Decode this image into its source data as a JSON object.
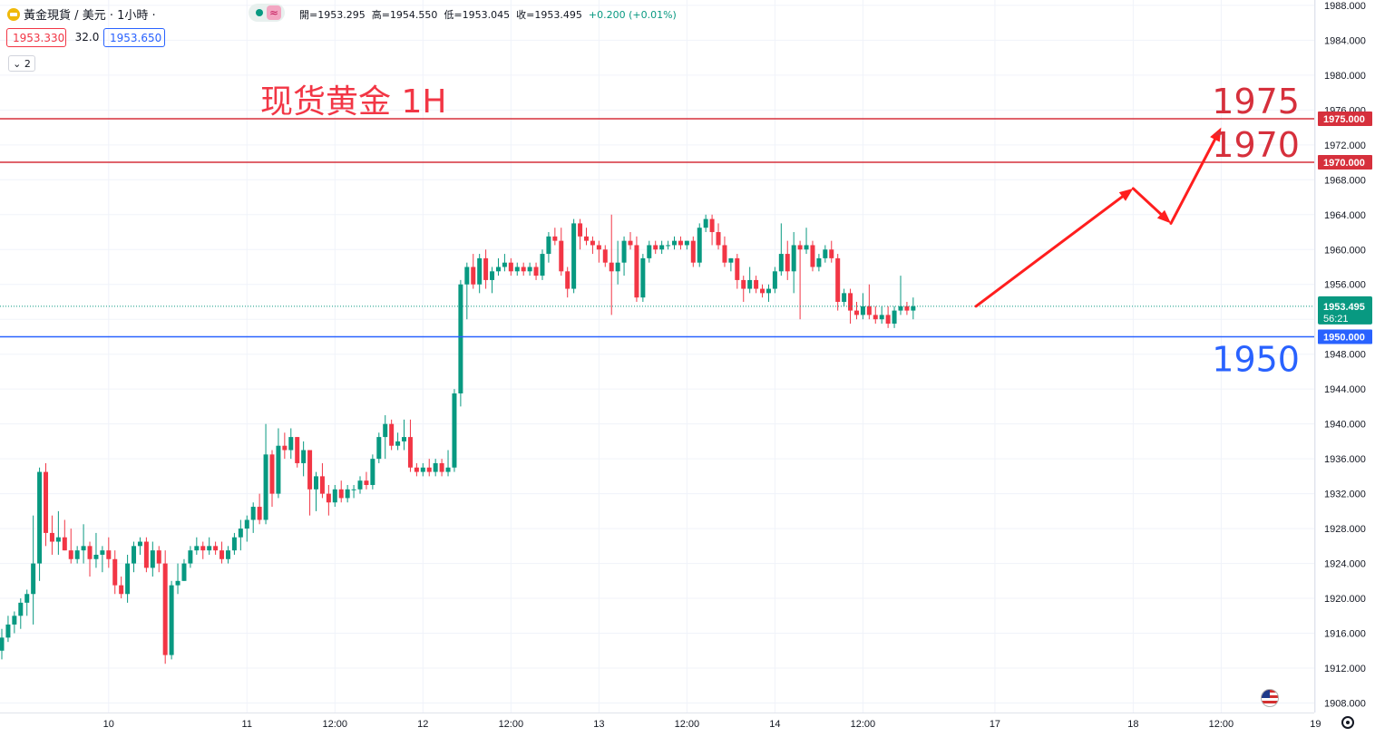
{
  "header": {
    "symbol": "黃金現貨",
    "separator": "/",
    "currency_interval": "美元 · 1小時 ·",
    "approx_icon": "≈",
    "ohlc": {
      "open_label": "開=",
      "open": "1953.295",
      "high_label": "高=",
      "high": "1954.550",
      "low_label": "低=",
      "low": "1953.045",
      "close_label": "收=",
      "close": "1953.495",
      "change": "+0.200 (+0.01%)"
    },
    "bid": "1953.330",
    "spread": "32.0",
    "ask": "1953.650",
    "indicators_count": "2"
  },
  "annotation_title": "现货黄金 1H",
  "icons": {
    "symbol": "gold-coin-icon",
    "collapse": "chevron-down-icon",
    "events": "us-flag-icon",
    "settings": "gear-icon"
  },
  "colors": {
    "up": "#089981",
    "down": "#f23645",
    "resistance": "#d6303c",
    "support": "#2962ff",
    "arrow": "#ff1e1e"
  },
  "chart_data": {
    "type": "candlestick",
    "title": "现货黄金 1H",
    "ylim": [
      1906,
      1990
    ],
    "y_ticks": [
      1908,
      1912,
      1916,
      1920,
      1924,
      1928,
      1932,
      1936,
      1940,
      1944,
      1948,
      1952,
      1956,
      1960,
      1964,
      1968,
      1972,
      1976,
      1980,
      1984,
      1988
    ],
    "y_tick_labels": [
      "1908.000",
      "1912.000",
      "1916.000",
      "1920.000",
      "1924.000",
      "1928.000",
      "1932.000",
      "1936.000",
      "1940.000",
      "1944.000",
      "1948.000",
      "1952.000",
      "1956.000",
      "1960.000",
      "1964.000",
      "1968.000",
      "1972.000",
      "1976.000",
      "1980.000",
      "1984.000",
      "1988.000"
    ],
    "x_ticks": [
      {
        "label": "10",
        "bar": 17
      },
      {
        "label": "11",
        "bar": 39
      },
      {
        "label": "12:00",
        "bar": 53
      },
      {
        "label": "12",
        "bar": 67
      },
      {
        "label": "12:00",
        "bar": 81
      },
      {
        "label": "13",
        "bar": 95
      },
      {
        "label": "12:00",
        "bar": 109
      },
      {
        "label": "14",
        "bar": 123
      },
      {
        "label": "12:00",
        "bar": 137
      },
      {
        "label": "17",
        "bar": 158
      },
      {
        "label": "18",
        "bar": 180
      },
      {
        "label": "12:00",
        "bar": 194
      },
      {
        "label": "19",
        "bar": 209
      }
    ],
    "candles": [
      [
        1914.0,
        1916.5,
        1913.0,
        1915.5
      ],
      [
        1915.5,
        1918.0,
        1915.0,
        1917.0
      ],
      [
        1917.0,
        1918.5,
        1916.0,
        1918.0
      ],
      [
        1918.0,
        1920.0,
        1916.5,
        1919.5
      ],
      [
        1919.5,
        1921.0,
        1918.0,
        1920.5
      ],
      [
        1920.5,
        1929.5,
        1917.0,
        1924.0
      ],
      [
        1924.0,
        1935.0,
        1922.0,
        1934.5
      ],
      [
        1934.5,
        1935.5,
        1926.0,
        1927.5
      ],
      [
        1927.5,
        1929.5,
        1925.0,
        1926.5
      ],
      [
        1926.5,
        1930.0,
        1925.0,
        1927.0
      ],
      [
        1927.0,
        1929.0,
        1925.5,
        1925.5
      ],
      [
        1925.5,
        1928.0,
        1924.0,
        1924.5
      ],
      [
        1924.5,
        1926.0,
        1924.0,
        1925.5
      ],
      [
        1925.5,
        1928.5,
        1924.0,
        1926.0
      ],
      [
        1926.0,
        1926.5,
        1922.5,
        1924.5
      ],
      [
        1924.5,
        1927.5,
        1923.5,
        1925.0
      ],
      [
        1925.0,
        1926.0,
        1923.0,
        1925.5
      ],
      [
        1925.5,
        1927.0,
        1923.5,
        1924.5
      ],
      [
        1924.5,
        1925.5,
        1920.5,
        1921.5
      ],
      [
        1921.5,
        1922.5,
        1920.0,
        1920.5
      ],
      [
        1920.5,
        1925.0,
        1919.5,
        1924.0
      ],
      [
        1924.0,
        1926.5,
        1923.0,
        1926.0
      ],
      [
        1926.0,
        1927.0,
        1925.0,
        1926.5
      ],
      [
        1926.5,
        1927.0,
        1923.0,
        1923.5
      ],
      [
        1923.5,
        1926.5,
        1922.5,
        1925.5
      ],
      [
        1925.5,
        1926.0,
        1923.0,
        1924.0
      ],
      [
        1924.0,
        1925.5,
        1912.5,
        1913.5
      ],
      [
        1913.5,
        1922.0,
        1913.0,
        1921.5
      ],
      [
        1921.5,
        1924.0,
        1920.5,
        1922.0
      ],
      [
        1922.0,
        1924.5,
        1922.0,
        1924.0
      ],
      [
        1924.0,
        1926.0,
        1923.5,
        1925.5
      ],
      [
        1925.5,
        1927.0,
        1925.0,
        1926.0
      ],
      [
        1926.0,
        1926.5,
        1924.5,
        1925.5
      ],
      [
        1925.5,
        1927.0,
        1925.0,
        1926.0
      ],
      [
        1926.0,
        1926.5,
        1925.0,
        1925.5
      ],
      [
        1925.5,
        1926.5,
        1924.0,
        1924.5
      ],
      [
        1924.5,
        1926.0,
        1924.0,
        1925.5
      ],
      [
        1925.5,
        1927.5,
        1925.0,
        1927.0
      ],
      [
        1927.0,
        1929.0,
        1925.5,
        1928.0
      ],
      [
        1928.0,
        1929.5,
        1926.5,
        1929.0
      ],
      [
        1929.0,
        1931.0,
        1927.5,
        1930.5
      ],
      [
        1930.5,
        1932.0,
        1928.5,
        1929.0
      ],
      [
        1929.0,
        1940.0,
        1928.5,
        1936.5
      ],
      [
        1936.5,
        1937.0,
        1930.5,
        1932.0
      ],
      [
        1932.0,
        1939.5,
        1931.5,
        1937.5
      ],
      [
        1937.5,
        1939.0,
        1936.0,
        1937.0
      ],
      [
        1937.0,
        1939.5,
        1936.0,
        1938.5
      ],
      [
        1938.5,
        1938.5,
        1935.0,
        1935.5
      ],
      [
        1935.5,
        1938.0,
        1934.0,
        1937.0
      ],
      [
        1937.0,
        1937.0,
        1929.5,
        1932.5
      ],
      [
        1932.5,
        1934.5,
        1930.0,
        1934.0
      ],
      [
        1934.0,
        1935.5,
        1931.5,
        1932.0
      ],
      [
        1932.0,
        1933.0,
        1929.5,
        1931.0
      ],
      [
        1931.0,
        1933.0,
        1930.5,
        1932.5
      ],
      [
        1932.5,
        1933.5,
        1931.0,
        1931.5
      ],
      [
        1931.5,
        1933.0,
        1931.0,
        1932.5
      ],
      [
        1932.5,
        1933.0,
        1931.5,
        1932.5
      ],
      [
        1932.5,
        1934.0,
        1932.0,
        1933.5
      ],
      [
        1933.5,
        1934.5,
        1932.5,
        1933.0
      ],
      [
        1933.0,
        1936.5,
        1932.5,
        1936.0
      ],
      [
        1936.0,
        1939.0,
        1935.5,
        1938.5
      ],
      [
        1938.5,
        1941.0,
        1936.0,
        1940.0
      ],
      [
        1940.0,
        1940.5,
        1937.0,
        1937.5
      ],
      [
        1937.5,
        1939.0,
        1937.0,
        1938.0
      ],
      [
        1938.0,
        1940.5,
        1937.0,
        1938.5
      ],
      [
        1938.5,
        1940.5,
        1934.5,
        1935.0
      ],
      [
        1935.0,
        1935.5,
        1934.0,
        1934.5
      ],
      [
        1934.5,
        1935.5,
        1934.0,
        1935.0
      ],
      [
        1935.0,
        1936.0,
        1934.0,
        1934.5
      ],
      [
        1934.5,
        1936.0,
        1934.0,
        1935.5
      ],
      [
        1935.5,
        1936.0,
        1934.0,
        1934.5
      ],
      [
        1934.5,
        1937.0,
        1934.0,
        1935.0
      ],
      [
        1935.0,
        1944.0,
        1934.5,
        1943.5
      ],
      [
        1943.5,
        1956.5,
        1942.0,
        1956.0
      ],
      [
        1956.0,
        1958.5,
        1952.0,
        1958.0
      ],
      [
        1958.0,
        1959.5,
        1955.5,
        1956.0
      ],
      [
        1956.0,
        1959.5,
        1955.0,
        1959.0
      ],
      [
        1959.0,
        1960.0,
        1955.5,
        1956.5
      ],
      [
        1956.5,
        1958.0,
        1955.0,
        1957.5
      ],
      [
        1957.5,
        1959.0,
        1957.0,
        1958.0
      ],
      [
        1958.0,
        1959.5,
        1957.5,
        1958.5
      ],
      [
        1958.5,
        1959.0,
        1957.0,
        1957.5
      ],
      [
        1957.5,
        1958.5,
        1957.0,
        1958.0
      ],
      [
        1958.0,
        1958.5,
        1957.0,
        1957.5
      ],
      [
        1957.5,
        1958.5,
        1957.0,
        1958.0
      ],
      [
        1958.0,
        1958.5,
        1956.5,
        1957.0
      ],
      [
        1957.0,
        1960.0,
        1956.5,
        1959.5
      ],
      [
        1959.5,
        1962.0,
        1958.5,
        1961.5
      ],
      [
        1961.5,
        1962.5,
        1960.5,
        1961.0
      ],
      [
        1961.0,
        1962.5,
        1957.0,
        1957.5
      ],
      [
        1957.5,
        1958.0,
        1954.5,
        1955.5
      ],
      [
        1955.5,
        1963.5,
        1955.0,
        1963.0
      ],
      [
        1963.0,
        1963.5,
        1960.0,
        1961.5
      ],
      [
        1961.5,
        1962.5,
        1960.5,
        1961.0
      ],
      [
        1961.0,
        1961.5,
        1959.5,
        1960.5
      ],
      [
        1960.5,
        1961.0,
        1958.5,
        1960.0
      ],
      [
        1960.0,
        1960.5,
        1958.0,
        1958.5
      ],
      [
        1958.5,
        1964.0,
        1952.5,
        1957.5
      ],
      [
        1957.5,
        1961.0,
        1956.0,
        1958.5
      ],
      [
        1958.5,
        1961.5,
        1957.0,
        1961.0
      ],
      [
        1961.0,
        1962.0,
        1960.0,
        1960.5
      ],
      [
        1960.5,
        1961.5,
        1954.0,
        1954.5
      ],
      [
        1954.5,
        1959.5,
        1954.0,
        1959.0
      ],
      [
        1959.0,
        1961.0,
        1958.5,
        1960.5
      ],
      [
        1960.5,
        1961.0,
        1959.5,
        1960.0
      ],
      [
        1960.0,
        1961.0,
        1959.5,
        1960.5
      ],
      [
        1960.5,
        1961.0,
        1960.0,
        1960.5
      ],
      [
        1960.5,
        1961.5,
        1960.0,
        1961.0
      ],
      [
        1961.0,
        1961.5,
        1960.0,
        1960.5
      ],
      [
        1960.5,
        1961.0,
        1960.0,
        1961.0
      ],
      [
        1961.0,
        1961.5,
        1958.0,
        1958.5
      ],
      [
        1958.5,
        1963.0,
        1958.0,
        1962.5
      ],
      [
        1962.5,
        1964.0,
        1962.0,
        1963.5
      ],
      [
        1963.5,
        1964.0,
        1960.5,
        1962.0
      ],
      [
        1962.0,
        1963.0,
        1960.0,
        1960.5
      ],
      [
        1960.5,
        1961.5,
        1958.0,
        1958.5
      ],
      [
        1958.5,
        1959.0,
        1957.5,
        1959.0
      ],
      [
        1959.0,
        1959.5,
        1955.5,
        1956.5
      ],
      [
        1956.5,
        1957.0,
        1954.0,
        1955.5
      ],
      [
        1955.5,
        1958.0,
        1955.0,
        1956.5
      ],
      [
        1956.5,
        1957.0,
        1955.0,
        1955.5
      ],
      [
        1955.5,
        1956.0,
        1954.5,
        1955.0
      ],
      [
        1955.0,
        1956.0,
        1954.0,
        1955.5
      ],
      [
        1955.5,
        1958.0,
        1955.0,
        1957.5
      ],
      [
        1957.5,
        1963.0,
        1957.0,
        1959.5
      ],
      [
        1959.5,
        1961.0,
        1956.5,
        1957.5
      ],
      [
        1957.5,
        1962.0,
        1955.0,
        1960.5
      ],
      [
        1960.5,
        1961.0,
        1952.0,
        1960.0
      ],
      [
        1960.0,
        1962.5,
        1959.5,
        1960.5
      ],
      [
        1960.5,
        1961.0,
        1957.5,
        1958.0
      ],
      [
        1958.0,
        1959.5,
        1957.5,
        1959.0
      ],
      [
        1959.0,
        1960.5,
        1958.5,
        1960.0
      ],
      [
        1960.0,
        1961.0,
        1958.5,
        1959.0
      ],
      [
        1959.0,
        1959.5,
        1953.0,
        1954.0
      ],
      [
        1954.0,
        1955.5,
        1953.5,
        1955.0
      ],
      [
        1955.0,
        1955.5,
        1951.5,
        1953.0
      ],
      [
        1953.0,
        1954.0,
        1952.0,
        1952.5
      ],
      [
        1952.5,
        1955.0,
        1952.0,
        1953.5
      ],
      [
        1953.5,
        1956.0,
        1952.0,
        1952.5
      ],
      [
        1952.5,
        1953.5,
        1951.5,
        1952.0
      ],
      [
        1952.0,
        1953.5,
        1951.5,
        1952.5
      ],
      [
        1952.5,
        1953.5,
        1951.0,
        1951.5
      ],
      [
        1951.5,
        1953.5,
        1951.0,
        1953.0
      ],
      [
        1953.0,
        1957.0,
        1952.5,
        1953.5
      ],
      [
        1953.5,
        1954.0,
        1952.5,
        1953.0
      ],
      [
        1953.0,
        1954.5,
        1952.0,
        1953.5
      ]
    ],
    "horizontal_levels": [
      {
        "value": 1975.0,
        "label": "1975",
        "axis_label": "1975.000",
        "kind": "resistance"
      },
      {
        "value": 1970.0,
        "label": "1970",
        "axis_label": "1970.000",
        "kind": "resistance"
      },
      {
        "value": 1950.0,
        "label": "1950",
        "axis_label": "1950.000",
        "kind": "support"
      }
    ],
    "last_price": {
      "value": 1953.495,
      "label": "1953.495",
      "countdown": "56:21"
    },
    "projection_path": [
      {
        "bar": 155,
        "price": 1953.5
      },
      {
        "bar": 180,
        "price": 1967.0
      },
      {
        "bar": 186,
        "price": 1963.0
      },
      {
        "bar": 194,
        "price": 1974.0
      }
    ]
  }
}
